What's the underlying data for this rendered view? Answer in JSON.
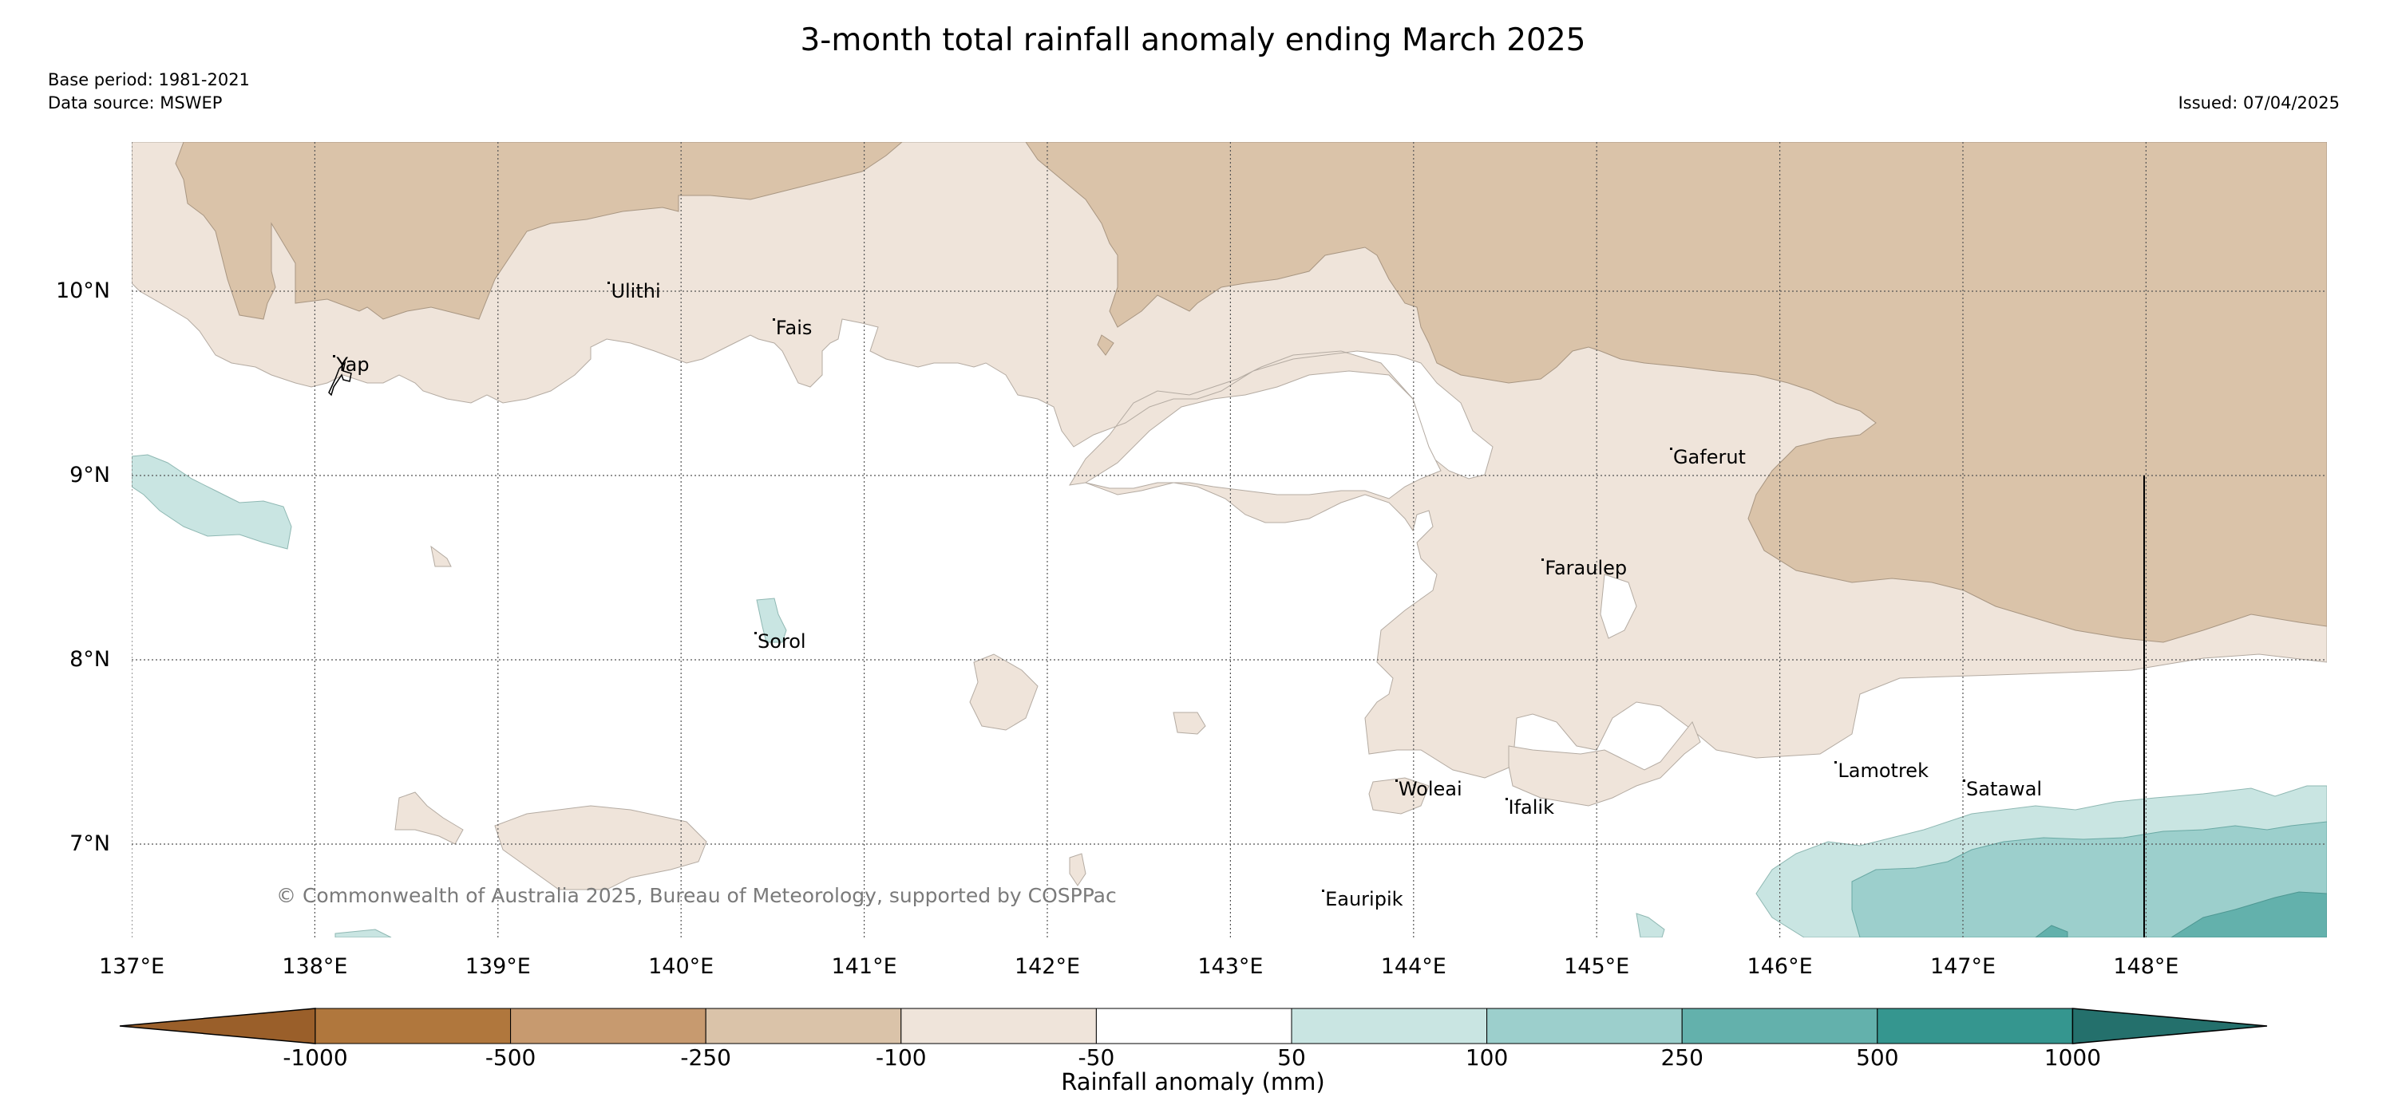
{
  "title": "3-month total rainfall anomaly ending March 2025",
  "base_period": "Base period: 1981-2021",
  "data_source": "Data source: MSWEP",
  "issued": "Issued: 07/04/2025",
  "copyright": "© Commonwealth of Australia 2025, Bureau of Meteorology, supported by COSPPac",
  "map": {
    "lon_range": [
      137.0,
      149.0
    ],
    "lat_range": [
      6.5,
      10.8
    ],
    "gridlines": "dotted",
    "lat_ticks": [
      {
        "value": 10,
        "label": "10°N"
      },
      {
        "value": 9,
        "label": "9°N"
      },
      {
        "value": 8,
        "label": "8°N"
      },
      {
        "value": 7,
        "label": "7°N"
      }
    ],
    "lon_ticks": [
      {
        "value": 137,
        "label": "137°E"
      },
      {
        "value": 138,
        "label": "138°E"
      },
      {
        "value": 139,
        "label": "139°E"
      },
      {
        "value": 140,
        "label": "140°E"
      },
      {
        "value": 141,
        "label": "141°E"
      },
      {
        "value": 142,
        "label": "142°E"
      },
      {
        "value": 143,
        "label": "143°E"
      },
      {
        "value": 144,
        "label": "144°E"
      },
      {
        "value": 145,
        "label": "145°E"
      },
      {
        "value": 146,
        "label": "146°E"
      },
      {
        "value": 147,
        "label": "147°E"
      },
      {
        "value": 148,
        "label": "148°E"
      }
    ],
    "places": [
      {
        "name": "Ulithi",
        "lon": 139.6,
        "lat": 10.0
      },
      {
        "name": "Fais",
        "lon": 140.5,
        "lat": 9.8
      },
      {
        "name": "Yap",
        "lon": 138.1,
        "lat": 9.6
      },
      {
        "name": "Gaferut",
        "lon": 145.4,
        "lat": 9.1
      },
      {
        "name": "Faraulep",
        "lon": 144.7,
        "lat": 8.5
      },
      {
        "name": "Sorol",
        "lon": 140.4,
        "lat": 8.1
      },
      {
        "name": "Woleai",
        "lon": 143.9,
        "lat": 7.3
      },
      {
        "name": "Ifalik",
        "lon": 144.5,
        "lat": 7.2
      },
      {
        "name": "Lamotrek",
        "lon": 146.3,
        "lat": 7.4
      },
      {
        "name": "Satawal",
        "lon": 147.0,
        "lat": 7.3
      },
      {
        "name": "Eauripik",
        "lon": 143.5,
        "lat": 6.7
      }
    ]
  },
  "colorbar": {
    "title": "Rainfall anomaly (mm)",
    "bounds": [
      "-1000",
      "-500",
      "-250",
      "-100",
      "-50",
      "50",
      "100",
      "250",
      "500",
      "1000"
    ],
    "colors": [
      "#9a5f2a",
      "#b0773d",
      "#c79a6f",
      "#dac3a9",
      "#efe4da",
      "#ffffff",
      "#c9e5e2",
      "#9ccfcc",
      "#63b1ac",
      "#35968f",
      "#24706c"
    ]
  }
}
